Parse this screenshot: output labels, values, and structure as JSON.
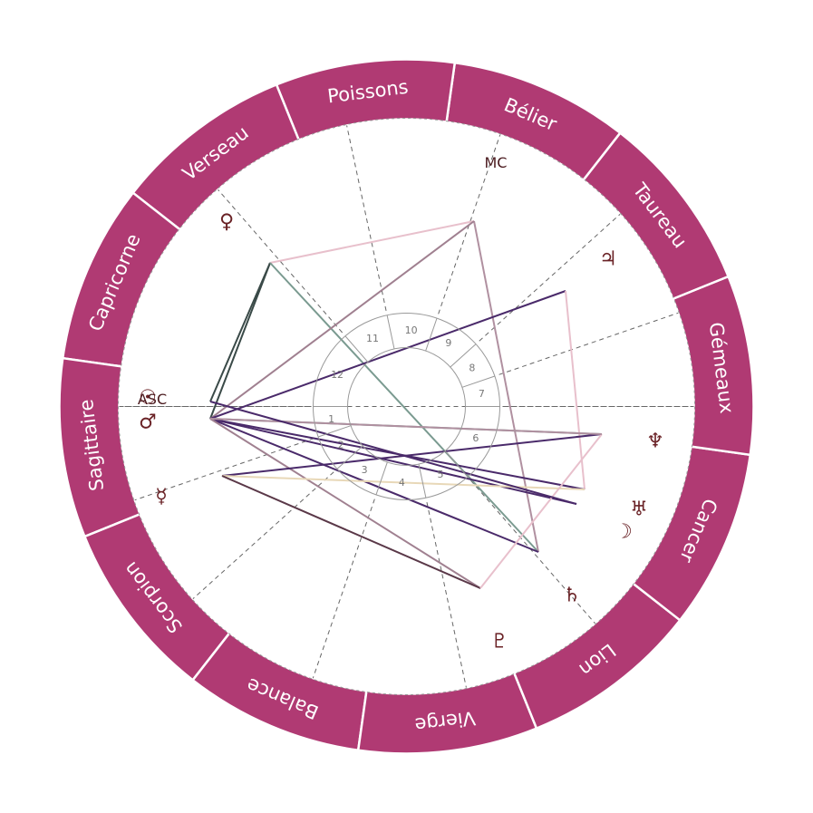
{
  "colors": {
    "ring": "#b03a73",
    "ring_divider": "#ffffff",
    "glyph": "#6a2226",
    "house_line": "#666666",
    "inner_circle": "#999999"
  },
  "signs": [
    {
      "name": "Bélier"
    },
    {
      "name": "Poissons"
    },
    {
      "name": "Verseau"
    },
    {
      "name": "Capricorne"
    },
    {
      "name": "Sagittaire"
    },
    {
      "name": "Scorpion"
    },
    {
      "name": "Balance"
    },
    {
      "name": "Vierge"
    },
    {
      "name": "Lion"
    },
    {
      "name": "Cancer"
    },
    {
      "name": "Gémeaux"
    },
    {
      "name": "Taureau"
    }
  ],
  "houses": [
    "1",
    "2",
    "3",
    "4",
    "5",
    "6",
    "7",
    "8",
    "9",
    "10",
    "11",
    "12"
  ],
  "angles": {
    "asc": "ASC",
    "mc": "MC"
  },
  "planets": [
    {
      "name": "sun",
      "glyph": "☉"
    },
    {
      "name": "mars",
      "glyph": "♂"
    },
    {
      "name": "venus",
      "glyph": "♀"
    },
    {
      "name": "mercury",
      "glyph": "☿"
    },
    {
      "name": "jupiter",
      "glyph": "♃"
    },
    {
      "name": "neptune",
      "glyph": "♆"
    },
    {
      "name": "uranus",
      "glyph": "♅"
    },
    {
      "name": "moon",
      "glyph": "☽"
    },
    {
      "name": "saturn",
      "glyph": "♄"
    },
    {
      "name": "pluto",
      "glyph": "♇"
    }
  ],
  "aspect_colors": [
    "#4a2a6a",
    "#a08090",
    "#7a9a90",
    "#e8c0cc",
    "#5a3848",
    "#e8d8b8",
    "#3a4a48",
    "#b090a0"
  ]
}
